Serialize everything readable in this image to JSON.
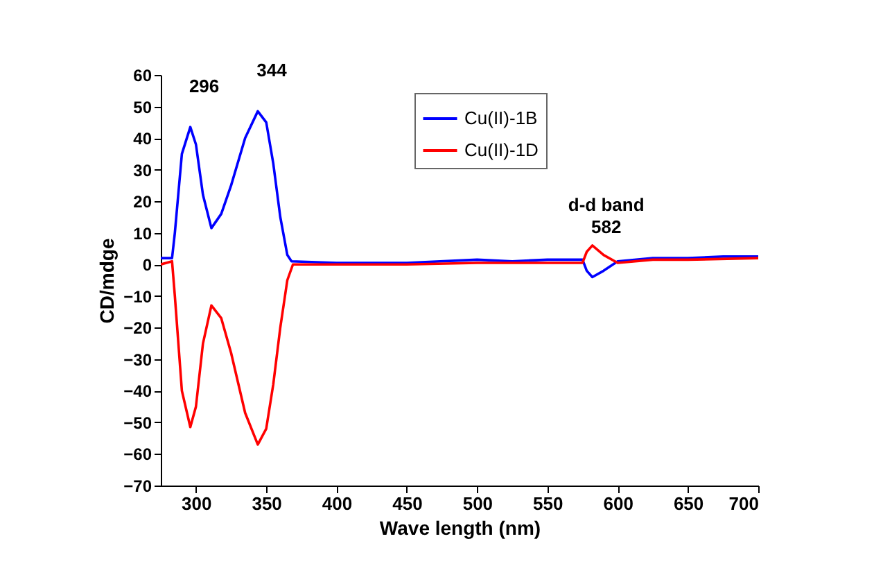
{
  "chart_data": {
    "type": "line",
    "xlabel": "Wave length (nm)",
    "ylabel": "CD/mdge",
    "xlim": [
      275,
      700
    ],
    "xticks": [
      300,
      350,
      400,
      450,
      500,
      550,
      600,
      650,
      700
    ],
    "ylim": [
      -70,
      60
    ],
    "yticks": [
      -70,
      -60,
      -50,
      -40,
      -30,
      -20,
      -10,
      0,
      10,
      20,
      30,
      40,
      50,
      60
    ],
    "grid": false,
    "legend": "top",
    "marker": "none",
    "line_style": "solid",
    "annotations": [
      {
        "text": "296",
        "x": 296,
        "y": 43.5
      },
      {
        "text": "344",
        "x": 344,
        "y": 48.5
      },
      {
        "text": "d-d band\n582",
        "x": 582,
        "y": 6
      }
    ],
    "series": [
      {
        "name": "Cu(II)-1B",
        "color": "#0000ff",
        "x": [
          275,
          283,
          285,
          290,
          296,
          300,
          305,
          311,
          318,
          325,
          335,
          344,
          350,
          355,
          360,
          365,
          368,
          400,
          450,
          500,
          525,
          550,
          575,
          578,
          582,
          590,
          600,
          625,
          650,
          675,
          700
        ],
        "values": [
          2,
          2,
          10,
          35,
          43.5,
          38,
          22,
          11.5,
          16,
          25,
          40,
          48.5,
          45,
          32,
          15,
          3,
          1,
          0.5,
          0.5,
          1.5,
          1,
          1.5,
          1.5,
          -2,
          -4,
          -2,
          1,
          2,
          2,
          2.5,
          2.5
        ]
      },
      {
        "name": "Cu(II)-1D",
        "color": "#ff0000",
        "x": [
          275,
          283,
          285,
          290,
          296,
          300,
          305,
          311,
          318,
          325,
          335,
          344,
          350,
          355,
          360,
          365,
          369,
          400,
          450,
          500,
          550,
          575,
          578,
          582,
          590,
          600,
          625,
          650,
          700
        ],
        "values": [
          0,
          1,
          -10,
          -40,
          -51.5,
          -45,
          -25,
          -13,
          -17,
          -28,
          -47,
          -57,
          -52,
          -38,
          -20,
          -5,
          0,
          0,
          0,
          0.5,
          0.5,
          0.5,
          4,
          6,
          3,
          0.5,
          1.5,
          1.5,
          2
        ]
      }
    ]
  }
}
